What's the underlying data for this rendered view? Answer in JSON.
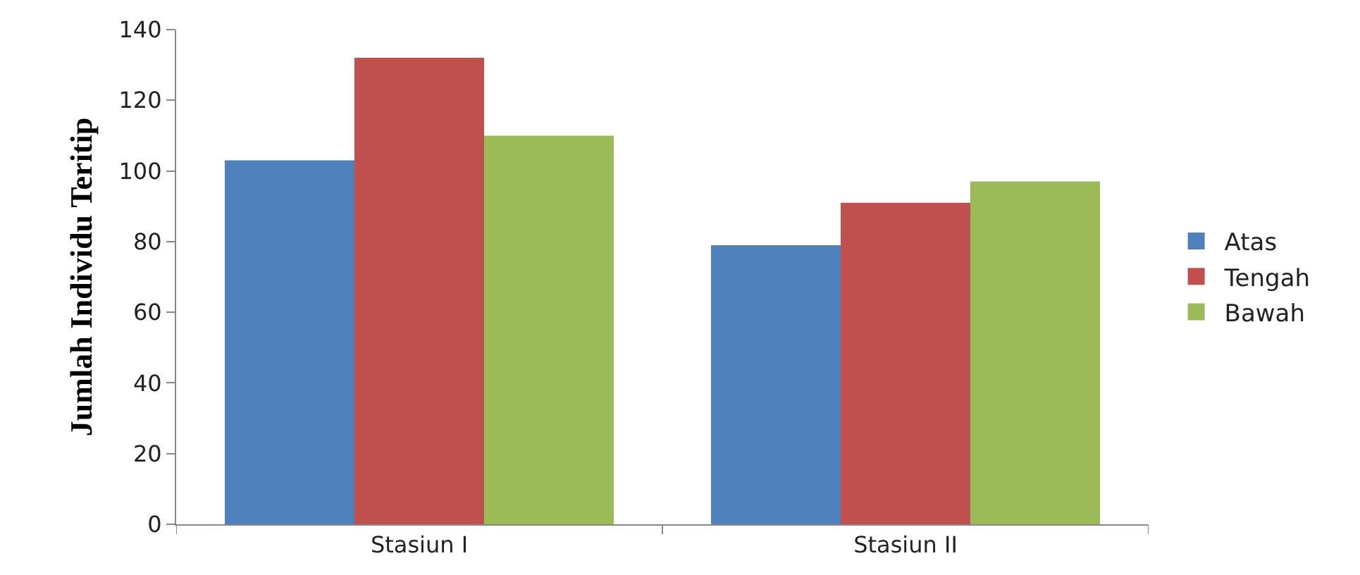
{
  "chart_data": {
    "type": "bar",
    "ylabel": "Jumlah Individu Teritip",
    "categories": [
      "Stasiun I",
      "Stasiun II"
    ],
    "series": [
      {
        "name": "Atas",
        "color": "#4f81bd",
        "values": [
          103,
          79
        ]
      },
      {
        "name": "Tengah",
        "color": "#c0504d",
        "values": [
          132,
          91
        ]
      },
      {
        "name": "Bawah",
        "color": "#9bbb59",
        "values": [
          110,
          97
        ]
      }
    ],
    "ylim": [
      0,
      140
    ],
    "yticks": [
      0,
      20,
      40,
      60,
      80,
      100,
      120,
      140
    ],
    "grid": false,
    "legend": "right"
  }
}
